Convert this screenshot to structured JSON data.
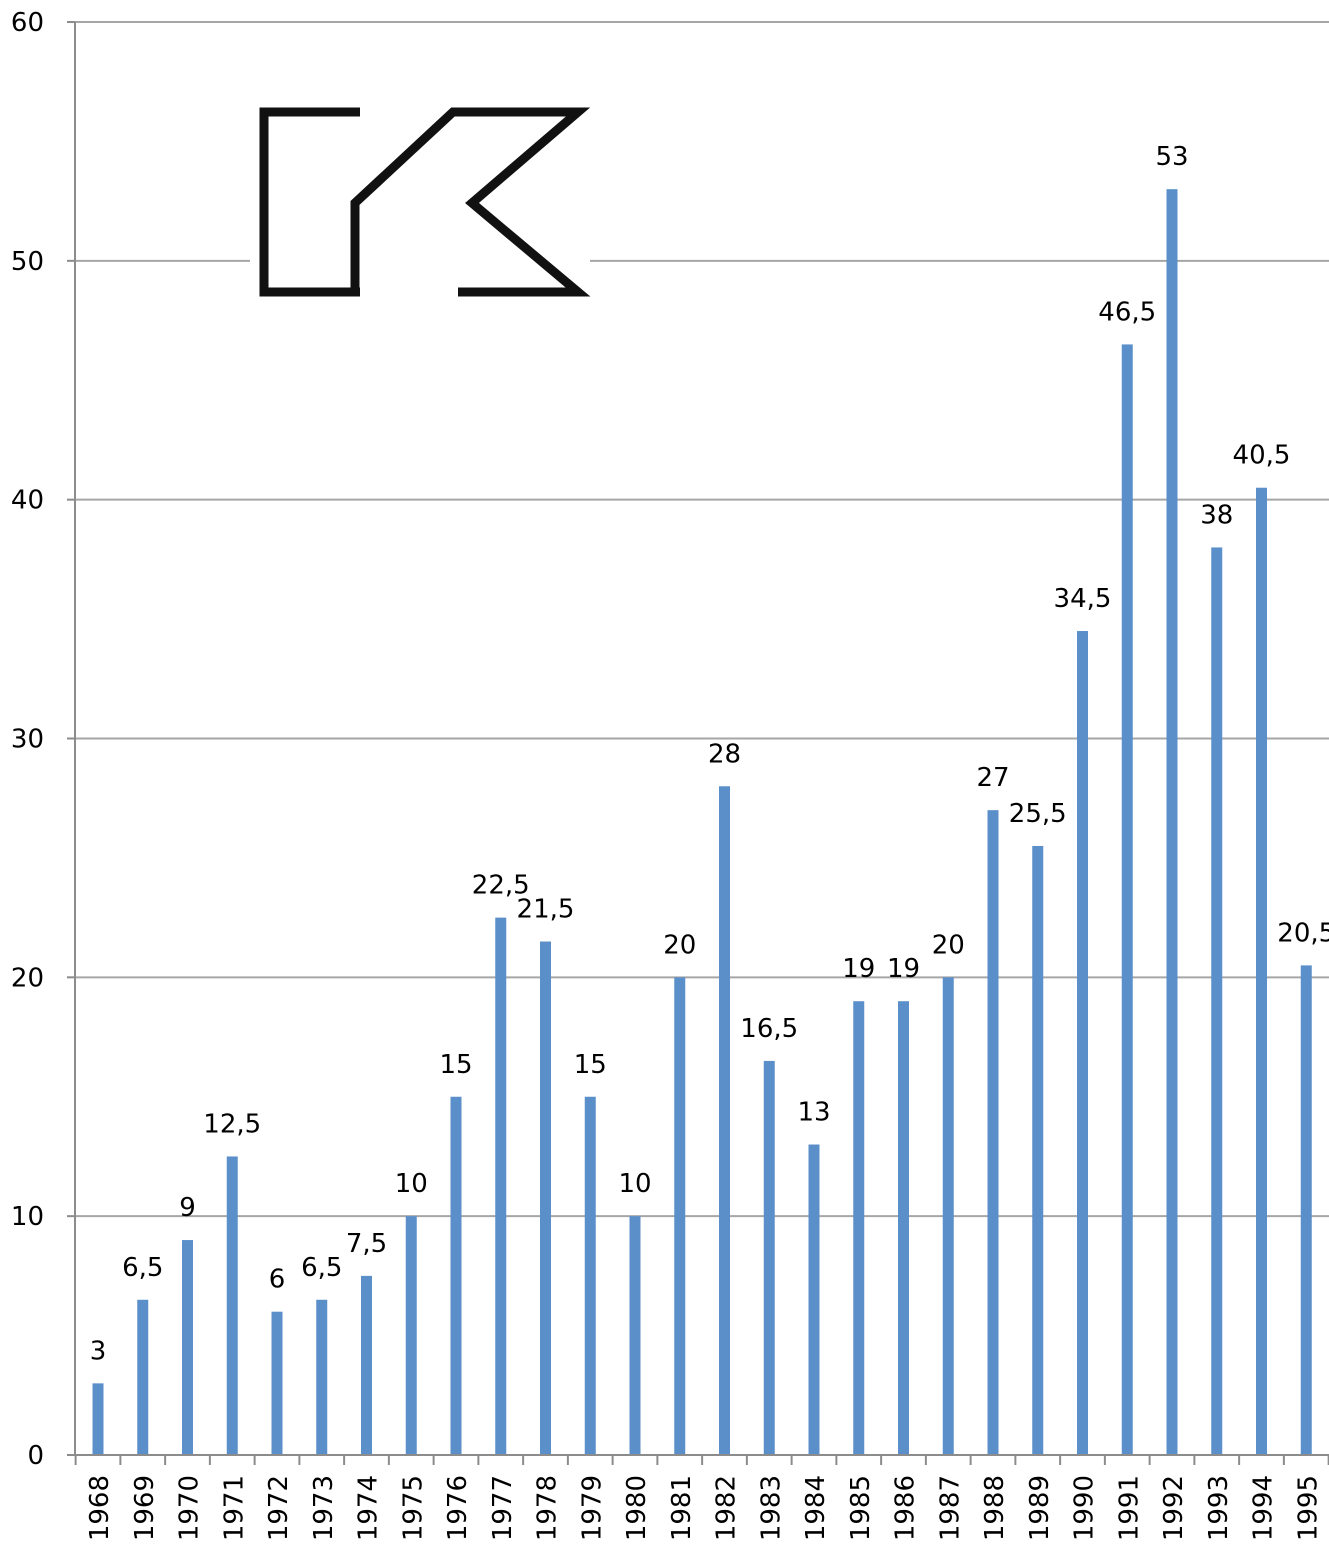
{
  "chart_data": {
    "type": "bar",
    "title": "",
    "xlabel": "",
    "ylabel": "",
    "categories": [
      "1968",
      "1969",
      "1970",
      "1971",
      "1972",
      "1973",
      "1974",
      "1975",
      "1976",
      "1977",
      "1978",
      "1979",
      "1980",
      "1981",
      "1982",
      "1983",
      "1984",
      "1985",
      "1986",
      "1987",
      "1988",
      "1989",
      "1990",
      "1991",
      "1992",
      "1993",
      "1994",
      "1995"
    ],
    "values": [
      3,
      6.5,
      9,
      12.5,
      6,
      6.5,
      7.5,
      10,
      15,
      22.5,
      21.5,
      15,
      10,
      20,
      28,
      16.5,
      13,
      19,
      19,
      20,
      27,
      25.5,
      34.5,
      46.5,
      53,
      38,
      40.5,
      20.5
    ],
    "value_labels": [
      "3",
      "6,5",
      "9",
      "12,5",
      "6",
      "6,5",
      "7,5",
      "10",
      "15",
      "22,5",
      "21,5",
      "15",
      "10",
      "20",
      "28",
      "16,5",
      "13",
      "19",
      "19",
      "20",
      "27",
      "25,5",
      "34,5",
      "46,5",
      "53",
      "38",
      "40,5",
      "20,5"
    ],
    "ylim": [
      0,
      60
    ],
    "yticks": [
      0,
      10,
      20,
      30,
      40,
      50,
      60
    ],
    "grid": true,
    "bar_color": "#5b8fc9",
    "logo": "k-mark-logo"
  }
}
